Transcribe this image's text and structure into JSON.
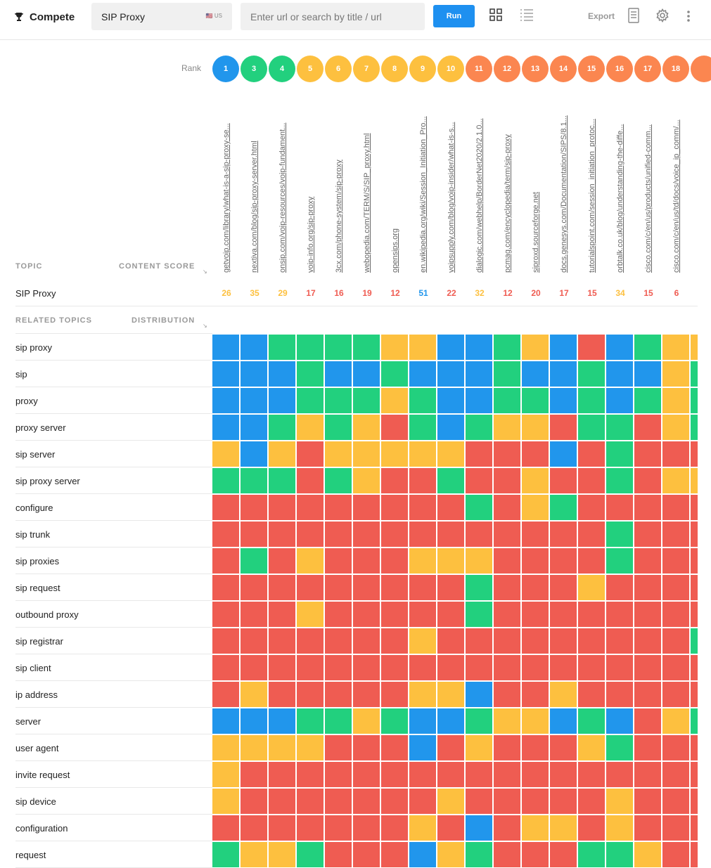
{
  "header": {
    "brand": "Compete",
    "topic_value": "SIP Proxy",
    "locale": "🇺🇸 US",
    "url_placeholder": "Enter url or search by title / url",
    "run_label": "Run",
    "export_label": "Export"
  },
  "table": {
    "rank_label": "Rank",
    "topic_header": "TOPIC",
    "content_score_header": "CONTENT SCORE",
    "topic_name": "SIP Proxy",
    "related_header": "RELATED TOPICS",
    "distribution_header": "DISTRIBUTION"
  },
  "colors": {
    "blue": "#2196ec",
    "green": "#22d07e",
    "yellow": "#fdc03f",
    "red": "#ef5c52",
    "orange": "#fb8650"
  },
  "columns": [
    {
      "rank": "1",
      "rank_color": "blue",
      "url": "getvoip.com/library/what-is-a-sip-proxy-se...",
      "score": "26",
      "score_color": "yellow"
    },
    {
      "rank": "3",
      "rank_color": "green",
      "url": "nextiva.com/blog/sip-proxy-server.html",
      "score": "35",
      "score_color": "yellow"
    },
    {
      "rank": "4",
      "rank_color": "green",
      "url": "onsip.com/voip-resources/voip-fundament...",
      "score": "29",
      "score_color": "yellow"
    },
    {
      "rank": "5",
      "rank_color": "yellow",
      "url": "voip-info.org/sip-proxy",
      "score": "17",
      "score_color": "red"
    },
    {
      "rank": "6",
      "rank_color": "yellow",
      "url": "3cx.com/phone-system/sip-proxy",
      "score": "16",
      "score_color": "red"
    },
    {
      "rank": "7",
      "rank_color": "yellow",
      "url": "webopedia.com/TERM/S/SIP_proxy.html",
      "score": "19",
      "score_color": "red"
    },
    {
      "rank": "8",
      "rank_color": "yellow",
      "url": "opensips.org",
      "score": "12",
      "score_color": "red"
    },
    {
      "rank": "9",
      "rank_color": "yellow",
      "url": "en.wikipedia.org/wiki/Session_Initiation_Pro...",
      "score": "51",
      "score_color": "blue"
    },
    {
      "rank": "10",
      "rank_color": "yellow",
      "url": "voipsupply.com/blog/voip-insider/what-is-s...",
      "score": "22",
      "score_color": "red"
    },
    {
      "rank": "11",
      "rank_color": "orange",
      "url": "dialogic.com/webhelp/BorderNet2020/2.1.0...",
      "score": "32",
      "score_color": "yellow"
    },
    {
      "rank": "12",
      "rank_color": "orange",
      "url": "pcmag.com/encyclopedia/term/sip-proxy",
      "score": "12",
      "score_color": "red"
    },
    {
      "rank": "13",
      "rank_color": "orange",
      "url": "siproxd.sourceforge.net",
      "score": "20",
      "score_color": "red"
    },
    {
      "rank": "14",
      "rank_color": "orange",
      "url": "docs.genesys.com/Documentation/SIPS/8.1...",
      "score": "17",
      "score_color": "red"
    },
    {
      "rank": "15",
      "rank_color": "orange",
      "url": "tutorialspoint.com/session_initiation_protoc...",
      "score": "15",
      "score_color": "red"
    },
    {
      "rank": "16",
      "rank_color": "orange",
      "url": "orbtalk.co.uk/blog/understanding-the-diffe...",
      "score": "34",
      "score_color": "yellow"
    },
    {
      "rank": "17",
      "rank_color": "orange",
      "url": "cisco.com/c/en/us/products/unified-comm...",
      "score": "15",
      "score_color": "red"
    },
    {
      "rank": "18",
      "rank_color": "orange",
      "url": "cisco.com/c/en/us/td/docs/voice_ip_comm/...",
      "score": "6",
      "score_color": "red"
    },
    {
      "rank": "",
      "rank_color": "orange",
      "url": "",
      "score": "",
      "score_color": "red"
    }
  ],
  "rows": [
    {
      "label": "sip proxy",
      "cells": "BBGGGGYYBBGYBRBGYY"
    },
    {
      "label": "sip",
      "cells": "BBBGBBGBBBGBBGBBYG"
    },
    {
      "label": "proxy",
      "cells": "BBBGGGYGBBGGBGBGYG"
    },
    {
      "label": "proxy server",
      "cells": "BBGYGYRGBGYYRGGRYG"
    },
    {
      "label": "sip server",
      "cells": "YBYRYYYYYRRRBRGRRR"
    },
    {
      "label": "sip proxy server",
      "cells": "GGGRGYRRGRRYRRGRYY"
    },
    {
      "label": "configure",
      "cells": "RRRRRRRRRGRYGRRRRR"
    },
    {
      "label": "sip trunk",
      "cells": "RRRRRRRRRRRRRRGRRR"
    },
    {
      "label": "sip proxies",
      "cells": "RGRYRRRYYYRRRRGRRR"
    },
    {
      "label": "sip request",
      "cells": "RRRRRRRRRGRRRYRRRR"
    },
    {
      "label": "outbound proxy",
      "cells": "RRRYRRRRRGRRRRRRRR"
    },
    {
      "label": "sip registrar",
      "cells": "RRRRRRRYRRRRRRRRRG"
    },
    {
      "label": "sip client",
      "cells": "RRRRRRRRRRRRRRRRRR"
    },
    {
      "label": "ip address",
      "cells": "RYRRRRRYYBRRYRRRRR"
    },
    {
      "label": "server",
      "cells": "BBBGGYGBBGYYBGBRYG"
    },
    {
      "label": "user agent",
      "cells": "YYYYRRRBRYRRRYGRRR"
    },
    {
      "label": "invite request",
      "cells": "YRRRRRRRRRRRRRRRRR"
    },
    {
      "label": "sip device",
      "cells": "YRRRRRRRYRRRRRYRRR"
    },
    {
      "label": "configuration",
      "cells": "RRRRRRRYRBRYYRYRRR"
    },
    {
      "label": "request",
      "cells": "GYYGRRRBYGRRRGGYRR"
    }
  ]
}
